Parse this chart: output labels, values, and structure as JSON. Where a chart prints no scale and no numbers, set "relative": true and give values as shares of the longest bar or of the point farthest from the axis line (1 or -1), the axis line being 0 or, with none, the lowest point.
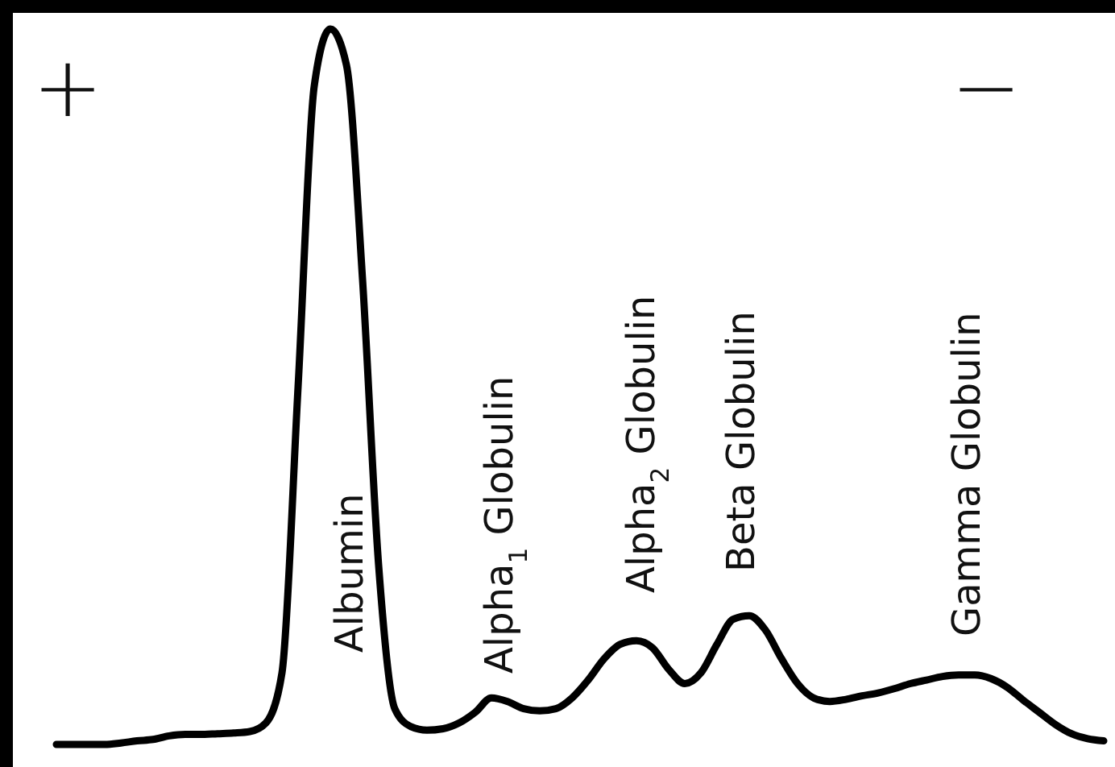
{
  "chart_data": {
    "type": "line",
    "relative": true,
    "categories": [
      null,
      null,
      null,
      null,
      null,
      null,
      null,
      null,
      null,
      null,
      null,
      null,
      null,
      null,
      null,
      null,
      null,
      null,
      null,
      null,
      null,
      null,
      null,
      null,
      null,
      null,
      null,
      null,
      null,
      null,
      null,
      null,
      null,
      null,
      null,
      null,
      null,
      null,
      null,
      null,
      null,
      null,
      null,
      null,
      null,
      null,
      null,
      null,
      null,
      null,
      null,
      null,
      null,
      null,
      null,
      null,
      null,
      null,
      null,
      null,
      null,
      null,
      null,
      null,
      null,
      null
    ],
    "series": [
      {
        "color": "#000000",
        "values": [
          0,
          0,
          0,
          0,
          0.002,
          0.005,
          0.007,
          0.012,
          0.014,
          0.014,
          0.015,
          0.016,
          0.018,
          0.03,
          0.1,
          0.5,
          0.92,
          1,
          0.95,
          0.65,
          0.25,
          0.05,
          0.025,
          0.02,
          0.022,
          0.03,
          0.045,
          0.065,
          0.06,
          0.05,
          0.047,
          0.05,
          0.065,
          0.09,
          0.12,
          0.14,
          0.145,
          0.135,
          0.105,
          0.085,
          0.1,
          0.14,
          0.175,
          0.18,
          0.16,
          0.12,
          0.085,
          0.065,
          0.06,
          0.063,
          0.068,
          0.072,
          0.078,
          0.085,
          0.09,
          0.095,
          0.097,
          0.097,
          0.092,
          0.08,
          0.062,
          0.045,
          0.028,
          0.015,
          0.008,
          0.005
        ]
      }
    ],
    "marker": "none",
    "line_style": "solid",
    "annotations": [
      "+",
      "−",
      "Albumin",
      "Alpha$_{1}$ Globulin",
      "Alpha$_{2}$ Globulin",
      "Beta Globulin",
      "Gamma Globulin"
    ]
  }
}
